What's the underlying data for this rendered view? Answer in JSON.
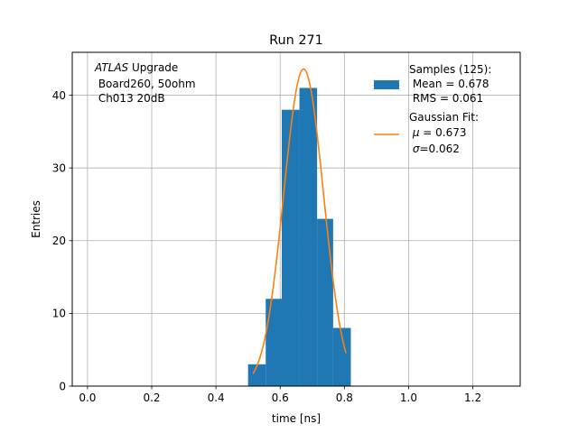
{
  "chart_data": {
    "type": "bar",
    "title": "Run 271",
    "xlabel": "time [ns]",
    "ylabel": "Entries",
    "xlim": [
      -0.0475,
      1.3475
    ],
    "ylim": [
      0,
      45.9
    ],
    "grid": true,
    "x_ticks": [
      0.0,
      0.2,
      0.4,
      0.6,
      0.8,
      1.0,
      1.2
    ],
    "x_tick_labels": [
      "0.0",
      "0.2",
      "0.4",
      "0.6",
      "0.8",
      "1.0",
      "1.2"
    ],
    "y_ticks": [
      0,
      10,
      20,
      30,
      40
    ],
    "y_tick_labels": [
      "0",
      "10",
      "20",
      "30",
      "40"
    ],
    "histogram": {
      "name": "Samples (125):",
      "bin_edges": [
        0.5,
        0.555,
        0.605,
        0.66,
        0.715,
        0.765,
        0.82
      ],
      "counts": [
        3,
        12,
        38,
        41,
        23,
        8
      ],
      "color": "#1f77b4"
    },
    "fit": {
      "name": "Gaussian Fit:",
      "amplitude": 43.6,
      "mu": 0.673,
      "sigma": 0.062,
      "x_range": [
        0.515,
        0.805
      ],
      "color": "#ff7f0e"
    },
    "annotation": {
      "italic": "ATLAS",
      "rest": " Upgrade",
      "line2": " Board260, 50ohm",
      "line3": " Ch013 20dB"
    },
    "legend": {
      "position": "upper right",
      "samples_lines": [
        "Samples (125):",
        " Mean = 0.678",
        " RMS = 0.061"
      ],
      "fit_title": "Gaussian Fit:",
      "fit_mu_symbol": "μ",
      "fit_mu_rest": " = 0.673",
      "fit_sigma_symbol": "σ",
      "fit_sigma_rest": "=0.062"
    }
  }
}
